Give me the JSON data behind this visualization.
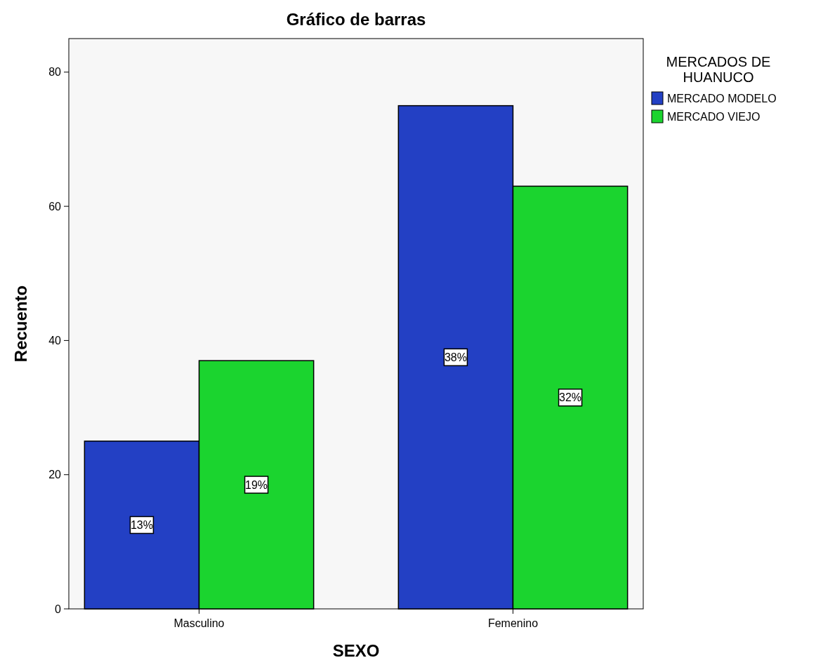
{
  "chart_data": {
    "type": "bar",
    "title": "Gráfico de barras",
    "xlabel": "SEXO",
    "ylabel": "Recuento",
    "legend_title": "MERCADOS DE HUANUCO",
    "categories": [
      "Masculino",
      "Femenino"
    ],
    "series": [
      {
        "name": "MERCADO MODELO",
        "color": "#2340c4",
        "values": [
          25,
          75
        ]
      },
      {
        "name": "MERCADO VIEJO",
        "color": "#1bd42f",
        "values": [
          37,
          63
        ]
      }
    ],
    "annotations": [
      "13%",
      "19%",
      "38%",
      "32%"
    ],
    "ylim": [
      0,
      85
    ],
    "yticks": [
      0,
      20,
      40,
      60,
      80
    ],
    "grid": false,
    "legend": "top right"
  }
}
